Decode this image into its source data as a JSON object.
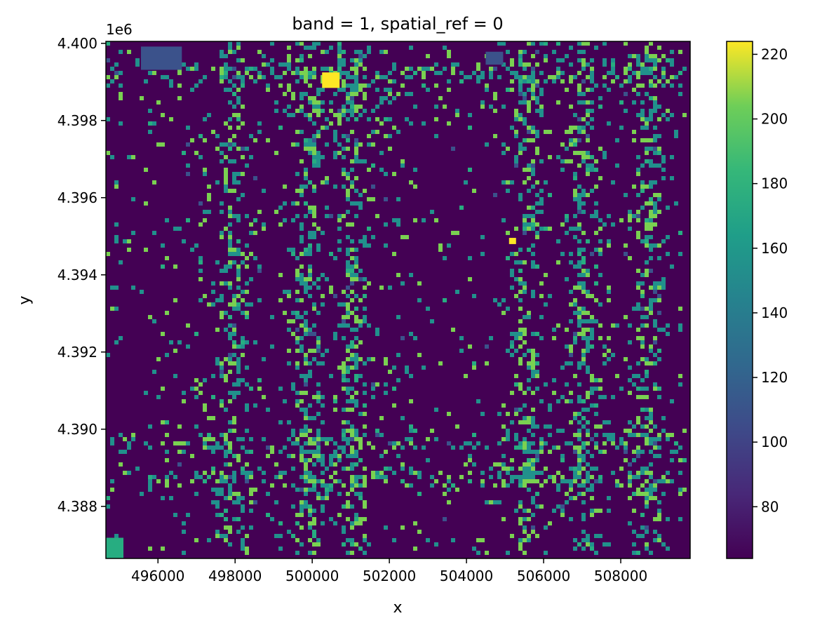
{
  "chart_data": {
    "type": "heatmap",
    "title": "band = 1, spatial_ref = 0",
    "xlabel": "x",
    "ylabel": "y",
    "y_offset_label": "1e6",
    "xlim": [
      494650,
      509800
    ],
    "ylim": [
      4.38665,
      4.40005
    ],
    "x_ticks": [
      496000,
      498000,
      500000,
      502000,
      504000,
      506000,
      508000
    ],
    "x_tick_labels": [
      "496000",
      "498000",
      "500000",
      "502000",
      "504000",
      "506000",
      "508000"
    ],
    "y_ticks": [
      4.388,
      4.39,
      4.392,
      4.394,
      4.396,
      4.398,
      4.4
    ],
    "y_tick_labels": [
      "4.388",
      "4.390",
      "4.392",
      "4.394",
      "4.396",
      "4.398",
      "4.400"
    ],
    "colorbar": {
      "colormap": "viridis",
      "range": [
        64,
        224
      ],
      "ticks": [
        80,
        100,
        120,
        140,
        160,
        180,
        200,
        220
      ],
      "tick_labels": [
        "80",
        "100",
        "120",
        "140",
        "160",
        "180",
        "200",
        "220"
      ]
    },
    "value_levels": [
      66,
      92,
      130,
      170,
      192,
      222
    ],
    "colors": {
      "66": "#440154",
      "92": "#3b528b",
      "130": "#21918c",
      "170": "#27ad81",
      "192": "#7ad151",
      "222": "#fde725"
    }
  }
}
